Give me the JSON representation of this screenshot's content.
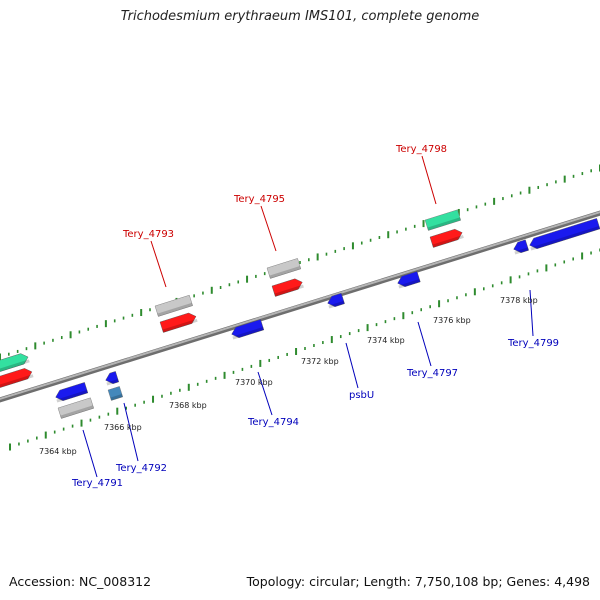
{
  "title": "Trichodesmium erythraeum IMS101, complete genome",
  "footer": {
    "accession": "Accession: NC_008312",
    "stats": "Topology: circular; Length: 7,750,108 bp; Genes: 4,498"
  },
  "colors": {
    "backbone": "#8c8c8c",
    "tick": "#2e8b2e",
    "forward_label": "#cc0000",
    "reverse_label": "#0000bb",
    "cds": "#ff1a1a",
    "gene": "#c8c8c8",
    "rrna_like": "#33e0a0",
    "reverse_cds": "#1a1aee",
    "trna": "#4488bb",
    "leader_line_fwd": "#cc0000",
    "leader_line_rev": "#0000bb"
  },
  "scale": {
    "ticks": [
      {
        "label": "7364 kbp"
      },
      {
        "label": "7366 kbp"
      },
      {
        "label": "7368 kbp"
      },
      {
        "label": "7370 kbp"
      },
      {
        "label": "7372 kbp"
      },
      {
        "label": "7374 kbp"
      },
      {
        "label": "7376 kbp"
      },
      {
        "label": "7378 kbp"
      }
    ]
  },
  "forward_labels": [
    {
      "name": "Tery_4793"
    },
    {
      "name": "Tery_4795"
    },
    {
      "name": "Tery_4798"
    }
  ],
  "reverse_labels": [
    {
      "name": "Tery_4791"
    },
    {
      "name": "Tery_4792"
    },
    {
      "name": "Tery_4794"
    },
    {
      "name": "psbU"
    },
    {
      "name": "Tery_4797"
    },
    {
      "name": "Tery_4799"
    }
  ]
}
